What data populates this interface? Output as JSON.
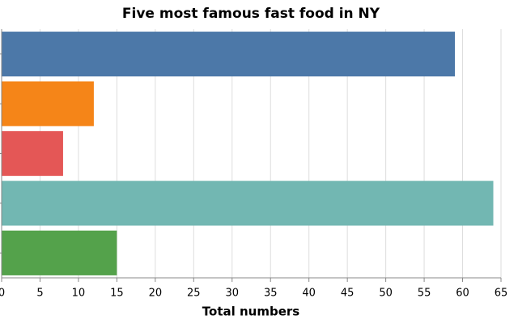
{
  "chart_data": {
    "type": "barh",
    "title": "Five most famous fast food in NY",
    "x_label": "Total numbers",
    "categories": [
      null,
      null,
      null,
      null,
      null
    ],
    "values": [
      59,
      12,
      8,
      64,
      15
    ],
    "colors": [
      "#4c78a8",
      "#f58518",
      "#e45756",
      "#72b7b2",
      "#54a24b"
    ],
    "xlim": [
      0,
      65
    ],
    "xticks": [
      0,
      5,
      10,
      15,
      20,
      25,
      30,
      35,
      40,
      45,
      50,
      55,
      60,
      65
    ],
    "grid": true
  }
}
